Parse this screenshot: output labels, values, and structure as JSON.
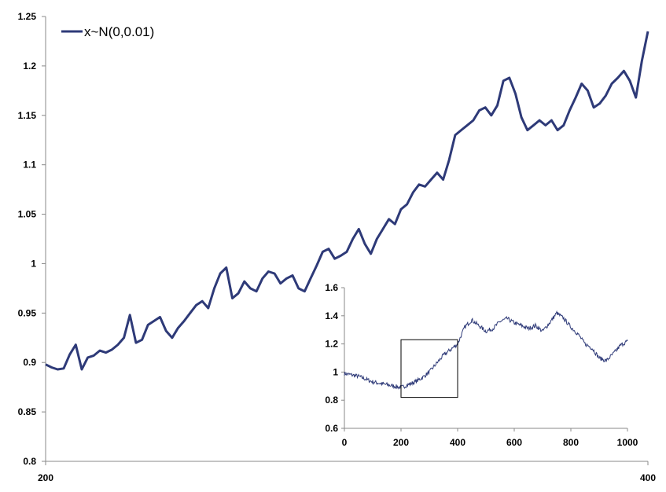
{
  "chart_data": [
    {
      "type": "line",
      "role": "main",
      "xlim": [
        200,
        400
      ],
      "ylim": [
        0.8,
        1.25
      ],
      "xticks": [
        "200",
        "400"
      ],
      "yticks": [
        "0.8",
        "0.85",
        "0.9",
        "0.95",
        "1",
        "1.05",
        "1.1",
        "1.15",
        "1.2",
        "1.25"
      ],
      "grid": false,
      "legend_position": "top-left",
      "series": [
        {
          "name": "x~N(0,0.01)",
          "color": "#2e3a78",
          "x": [
            200,
            202,
            204,
            206,
            208,
            210,
            212,
            214,
            216,
            218,
            220,
            222,
            224,
            226,
            228,
            230,
            232,
            234,
            236,
            238,
            240,
            242,
            244,
            246,
            248,
            250,
            252,
            254,
            256,
            258,
            260,
            262,
            264,
            266,
            268,
            270,
            272,
            274,
            276,
            278,
            280,
            282,
            284,
            286,
            288,
            290,
            292,
            294,
            296,
            298,
            300,
            302,
            304,
            306,
            308,
            310,
            312,
            314,
            316,
            318,
            320,
            322,
            324,
            326,
            328,
            330,
            332,
            334,
            336,
            338,
            340,
            342,
            344,
            346,
            348,
            350,
            352,
            354,
            356,
            358,
            360,
            362,
            364,
            366,
            368,
            370,
            372,
            374,
            376,
            378,
            380,
            382,
            384,
            386,
            388,
            390,
            392,
            394,
            396,
            398,
            400
          ],
          "y": [
            0.898,
            0.895,
            0.893,
            0.894,
            0.908,
            0.918,
            0.893,
            0.905,
            0.907,
            0.912,
            0.91,
            0.913,
            0.918,
            0.925,
            0.948,
            0.92,
            0.923,
            0.938,
            0.942,
            0.946,
            0.932,
            0.925,
            0.935,
            0.942,
            0.95,
            0.958,
            0.962,
            0.955,
            0.975,
            0.99,
            0.996,
            0.965,
            0.97,
            0.982,
            0.975,
            0.972,
            0.985,
            0.992,
            0.99,
            0.98,
            0.985,
            0.988,
            0.975,
            0.972,
            0.985,
            0.998,
            1.012,
            1.015,
            1.005,
            1.008,
            1.012,
            1.025,
            1.035,
            1.02,
            1.01,
            1.025,
            1.035,
            1.045,
            1.04,
            1.055,
            1.06,
            1.072,
            1.08,
            1.078,
            1.085,
            1.092,
            1.085,
            1.105,
            1.13,
            1.135,
            1.14,
            1.145,
            1.155,
            1.158,
            1.15,
            1.16,
            1.185,
            1.188,
            1.172,
            1.148,
            1.135,
            1.14,
            1.145,
            1.14,
            1.145,
            1.135,
            1.14,
            1.155,
            1.168,
            1.182,
            1.175,
            1.158,
            1.162,
            1.17,
            1.182,
            1.188,
            1.195,
            1.185,
            1.168,
            1.205,
            1.235
          ]
        }
      ]
    },
    {
      "type": "line",
      "role": "inset",
      "xlim": [
        0,
        1000
      ],
      "ylim": [
        0.6,
        1.6
      ],
      "xticks": [
        "0",
        "200",
        "400",
        "600",
        "800",
        "1000"
      ],
      "yticks": [
        "0.6",
        "0.8",
        "1",
        "1.2",
        "1.4",
        "1.6"
      ],
      "highlight_box": {
        "x": [
          200,
          400
        ],
        "y": [
          0.82,
          1.23
        ]
      },
      "series": [
        {
          "color": "#2e3a78",
          "x": [
            0,
            25,
            50,
            75,
            100,
            125,
            150,
            175,
            200,
            225,
            250,
            275,
            300,
            325,
            350,
            375,
            400,
            425,
            450,
            475,
            500,
            525,
            550,
            575,
            600,
            625,
            650,
            675,
            700,
            725,
            750,
            775,
            800,
            825,
            850,
            875,
            900,
            925,
            950,
            975,
            1000
          ],
          "y": [
            0.99,
            0.98,
            0.97,
            0.95,
            0.93,
            0.92,
            0.91,
            0.9,
            0.89,
            0.91,
            0.93,
            0.96,
            1.0,
            1.06,
            1.12,
            1.16,
            1.2,
            1.32,
            1.37,
            1.33,
            1.29,
            1.31,
            1.36,
            1.38,
            1.35,
            1.33,
            1.31,
            1.33,
            1.29,
            1.35,
            1.42,
            1.38,
            1.32,
            1.27,
            1.2,
            1.17,
            1.1,
            1.08,
            1.13,
            1.19,
            1.22
          ]
        }
      ]
    }
  ]
}
